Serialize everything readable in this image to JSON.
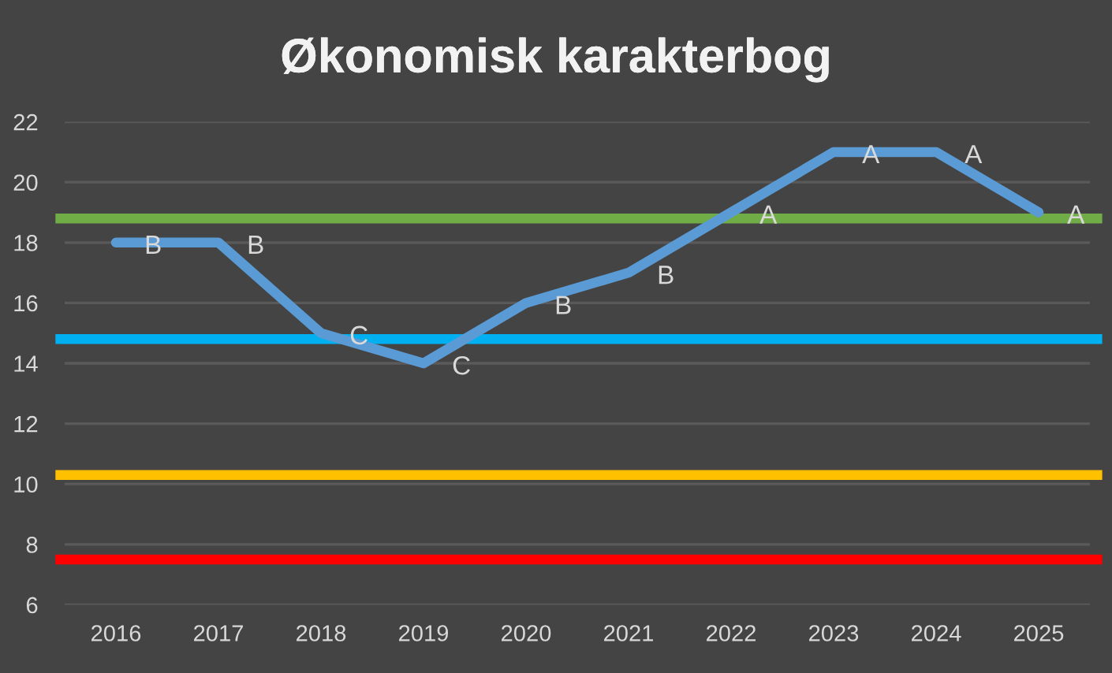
{
  "chart_data": {
    "type": "line",
    "title": "Økonomisk karakterbog",
    "categories": [
      "2016",
      "2017",
      "2018",
      "2019",
      "2020",
      "2021",
      "2022",
      "2023",
      "2024",
      "2025"
    ],
    "series": [
      {
        "color": "#5b9bd5",
        "values": [
          18,
          18,
          15,
          14,
          16,
          17,
          19,
          21,
          21,
          19
        ],
        "value_labels": [
          "B",
          "B",
          "C",
          "C",
          "B",
          "B",
          "A",
          "A",
          "A",
          "A"
        ]
      }
    ],
    "ylim": [
      6,
      22
    ],
    "yticks": [
      6,
      8,
      10,
      12,
      14,
      16,
      18,
      20,
      22
    ],
    "grid": "y",
    "marker": "none",
    "line_style": "solid",
    "ref_lines": [
      {
        "axis": "y",
        "value": 18.8,
        "color": "#70ad47"
      },
      {
        "axis": "y",
        "value": 14.8,
        "color": "#00b0f0"
      },
      {
        "axis": "y",
        "value": 10.3,
        "color": "#ffc000"
      },
      {
        "axis": "y",
        "value": 7.5,
        "color": "#ff0000"
      }
    ]
  }
}
